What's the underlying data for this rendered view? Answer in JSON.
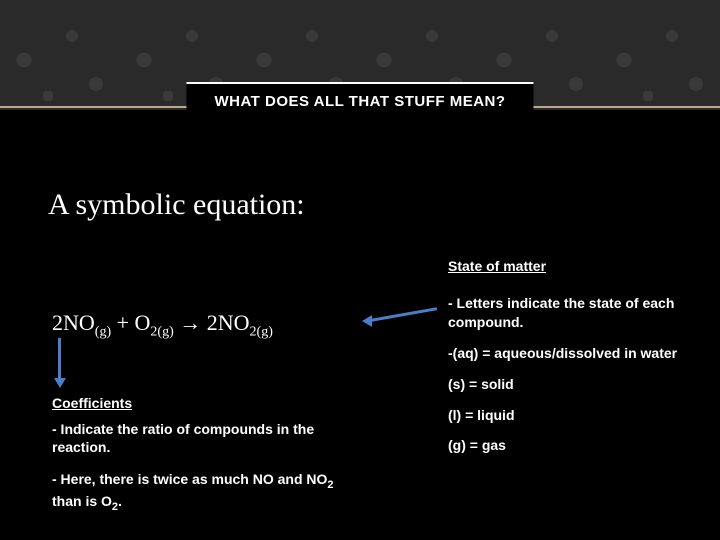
{
  "title": "WHAT DOES ALL THAT STUFF MEAN?",
  "subtitle": "A symbolic equation:",
  "state_header": "State of matter",
  "equation": {
    "c1": "2",
    "sp1": "NO",
    "sub1": "(g)",
    "plus": " + ",
    "sp2": "O",
    "sub2a": "2",
    "sub2b": "(g)",
    "arrow": " → ",
    "c3": "2",
    "sp3": "NO",
    "sub3a": "2",
    "sub3b": "(g)"
  },
  "coeff": {
    "header": "Coefficients",
    "line1": "- Indicate the ratio of compounds in the reaction.",
    "line2_a": "- Here, there is twice as much NO and NO",
    "line2_sub": "2",
    "line2_b": " than is O",
    "line2_sub2": "2",
    "line2_c": "."
  },
  "right": {
    "l1": "- Letters indicate the state of each compound.",
    "l2": "-(aq) = aqueous/dissolved in water",
    "l3": "(s) = solid",
    "l4": "(l) = liquid",
    "l5": "(g) = gas"
  },
  "colors": {
    "arrow": "#4a7ec8",
    "bg": "#000000",
    "divider": "#b8a98a"
  }
}
